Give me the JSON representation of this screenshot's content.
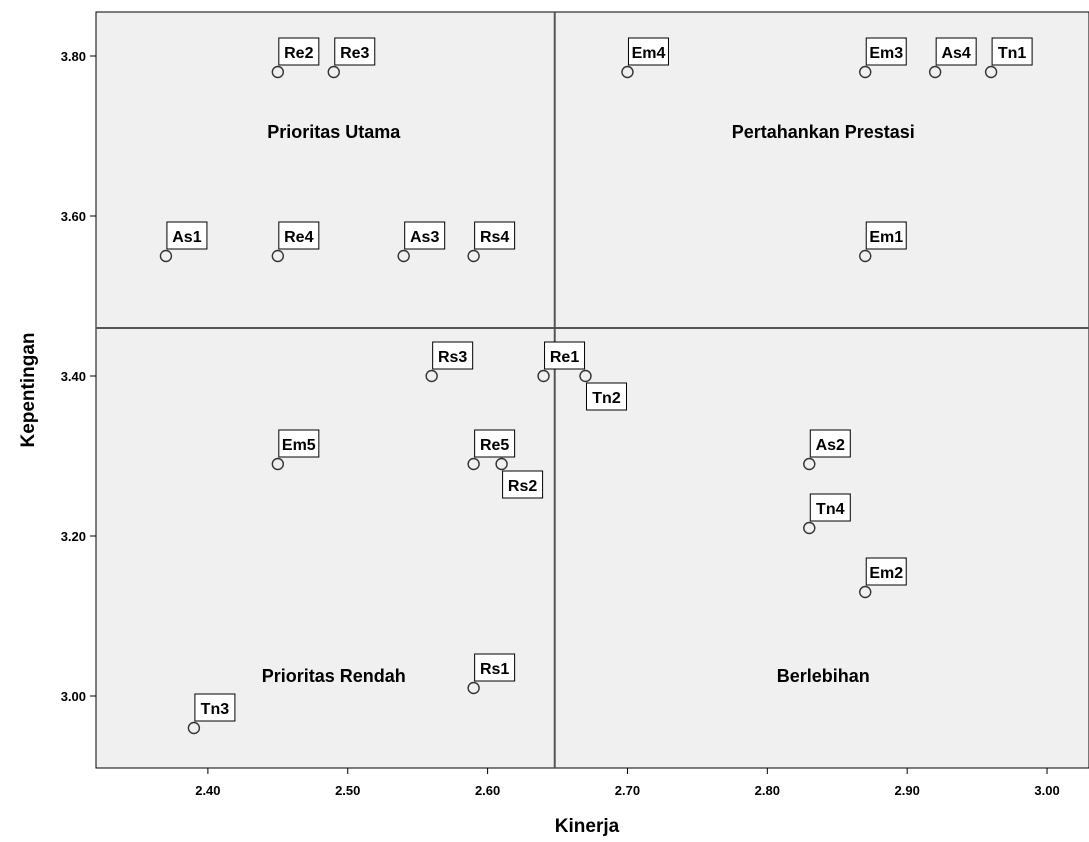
{
  "chart_data": {
    "type": "scatter",
    "title": "",
    "xlabel": "Kinerja",
    "ylabel": "Kepentingan",
    "xlim": [
      2.32,
      3.03
    ],
    "ylim": [
      2.91,
      3.855
    ],
    "x_ticks": [
      "2.40",
      "2.50",
      "2.60",
      "2.70",
      "2.80",
      "2.90",
      "3.00"
    ],
    "y_ticks": [
      "3.00",
      "3.20",
      "3.40",
      "3.60",
      "3.80"
    ],
    "reference_lines": {
      "x": 2.648,
      "y": 3.46
    },
    "grid": false,
    "quadrant_labels": [
      {
        "text": "Prioritas Utama",
        "x": 2.49,
        "y": 3.705
      },
      {
        "text": "Pertahankan Prestasi",
        "x": 2.84,
        "y": 3.705
      },
      {
        "text": "Prioritas Rendah",
        "x": 2.49,
        "y": 3.025
      },
      {
        "text": "Berlebihan",
        "x": 2.84,
        "y": 3.025
      }
    ],
    "points": [
      {
        "label": "Re2",
        "x": 2.45,
        "y": 3.78,
        "pos": "above"
      },
      {
        "label": "Re3",
        "x": 2.49,
        "y": 3.78,
        "pos": "above"
      },
      {
        "label": "Em4",
        "x": 2.7,
        "y": 3.78,
        "pos": "above"
      },
      {
        "label": "Em3",
        "x": 2.87,
        "y": 3.78,
        "pos": "above"
      },
      {
        "label": "As4",
        "x": 2.92,
        "y": 3.78,
        "pos": "above"
      },
      {
        "label": "Tn1",
        "x": 2.96,
        "y": 3.78,
        "pos": "above"
      },
      {
        "label": "As1",
        "x": 2.37,
        "y": 3.55,
        "pos": "above"
      },
      {
        "label": "Re4",
        "x": 2.45,
        "y": 3.55,
        "pos": "above"
      },
      {
        "label": "As3",
        "x": 2.54,
        "y": 3.55,
        "pos": "above"
      },
      {
        "label": "Rs4",
        "x": 2.59,
        "y": 3.55,
        "pos": "above"
      },
      {
        "label": "Em1",
        "x": 2.87,
        "y": 3.55,
        "pos": "above"
      },
      {
        "label": "Rs3",
        "x": 2.56,
        "y": 3.4,
        "pos": "above"
      },
      {
        "label": "Re1",
        "x": 2.64,
        "y": 3.4,
        "pos": "above"
      },
      {
        "label": "Tn2",
        "x": 2.67,
        "y": 3.4,
        "pos": "below"
      },
      {
        "label": "Em5",
        "x": 2.45,
        "y": 3.29,
        "pos": "above"
      },
      {
        "label": "Re5",
        "x": 2.59,
        "y": 3.29,
        "pos": "above"
      },
      {
        "label": "Rs2",
        "x": 2.61,
        "y": 3.29,
        "pos": "below"
      },
      {
        "label": "As2",
        "x": 2.83,
        "y": 3.29,
        "pos": "above"
      },
      {
        "label": "Tn4",
        "x": 2.83,
        "y": 3.21,
        "pos": "above"
      },
      {
        "label": "Em2",
        "x": 2.87,
        "y": 3.13,
        "pos": "above"
      },
      {
        "label": "Rs1",
        "x": 2.59,
        "y": 3.01,
        "pos": "above"
      },
      {
        "label": "Tn3",
        "x": 2.39,
        "y": 2.96,
        "pos": "above"
      }
    ],
    "colors": {
      "plot_background": "#f0f0f0",
      "marker": "#333333",
      "lines": "#555555",
      "label_background": "#ffffff"
    }
  }
}
